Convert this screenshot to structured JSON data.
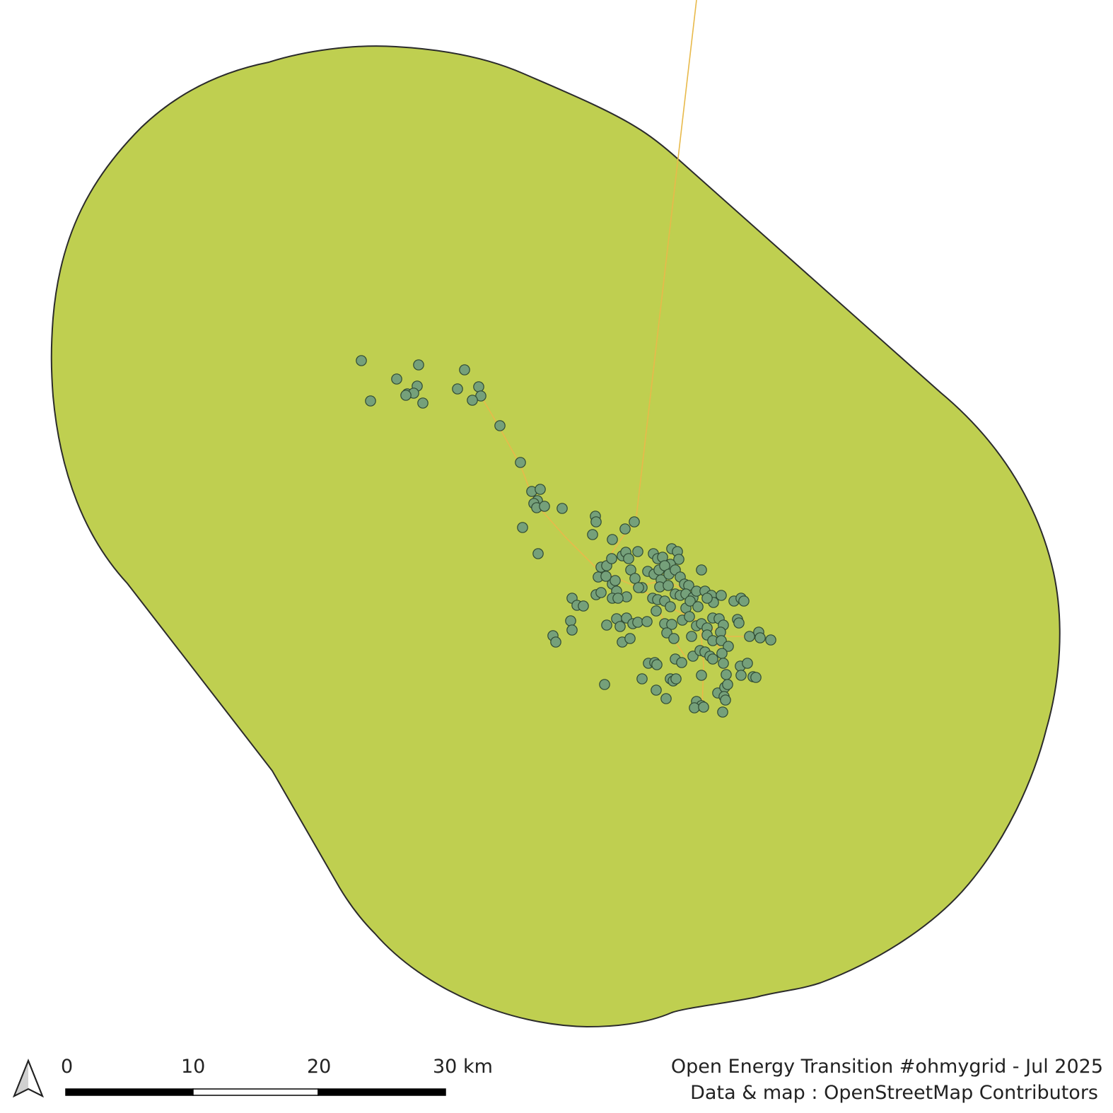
{
  "colors": {
    "background": "#ffffff",
    "buffer_area_fill": "#bfcf50",
    "buffer_area_outline": "#2b2b2b",
    "power_line": "#e8b94a",
    "site_marker_fill": "#75a07a",
    "site_marker_outline": "#2f4a34"
  },
  "north_arrow": {
    "icon": "north-arrow-icon"
  },
  "scale_bar": {
    "labels": [
      "0",
      "10",
      "20",
      "30 km"
    ]
  },
  "credits": {
    "line1": "Open Energy Transition #ohmygrid - Jul 2025",
    "line2": "Data & map : OpenStreetMap Contributors"
  }
}
